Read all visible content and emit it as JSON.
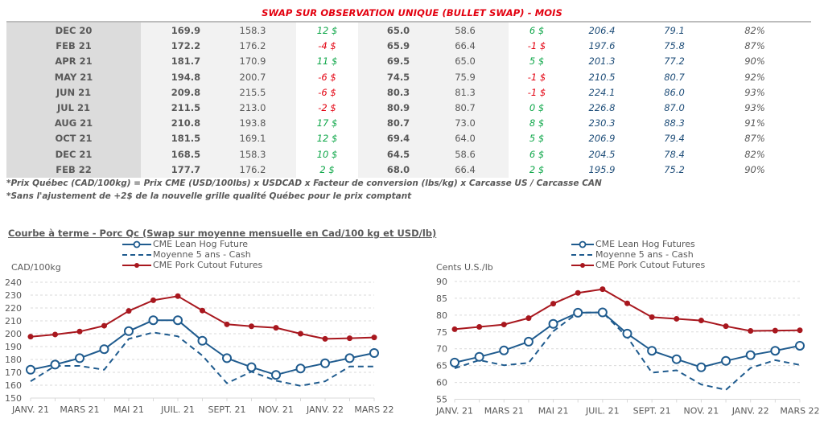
{
  "table": {
    "title": "SWAP SUR OBSERVATION UNIQUE (BULLET SWAP) - MOIS",
    "rows": [
      {
        "month": "DEC 20",
        "c1": "169.9",
        "c2": "158.3",
        "c3": "12 $",
        "c3_sign": "pos",
        "c4": "65.0",
        "c5": "58.6",
        "c6": "6 $",
        "c6_sign": "pos",
        "c7": "206.4",
        "c8": "79.1",
        "c9": "82%"
      },
      {
        "month": "FEB 21",
        "c1": "172.2",
        "c2": "176.2",
        "c3": "-4 $",
        "c3_sign": "neg",
        "c4": "65.9",
        "c5": "66.4",
        "c6": "-1 $",
        "c6_sign": "neg",
        "c7": "197.6",
        "c8": "75.8",
        "c9": "87%"
      },
      {
        "month": "APR 21",
        "c1": "181.7",
        "c2": "170.9",
        "c3": "11 $",
        "c3_sign": "pos",
        "c4": "69.5",
        "c5": "65.0",
        "c6": "5 $",
        "c6_sign": "pos",
        "c7": "201.3",
        "c8": "77.2",
        "c9": "90%"
      },
      {
        "month": "MAY 21",
        "c1": "194.8",
        "c2": "200.7",
        "c3": "-6 $",
        "c3_sign": "neg",
        "c4": "74.5",
        "c5": "75.9",
        "c6": "-1 $",
        "c6_sign": "neg",
        "c7": "210.5",
        "c8": "80.7",
        "c9": "92%"
      },
      {
        "month": "JUN 21",
        "c1": "209.8",
        "c2": "215.5",
        "c3": "-6 $",
        "c3_sign": "neg",
        "c4": "80.3",
        "c5": "81.3",
        "c6": "-1 $",
        "c6_sign": "neg",
        "c7": "224.1",
        "c8": "86.0",
        "c9": "93%"
      },
      {
        "month": "JUL 21",
        "c1": "211.5",
        "c2": "213.0",
        "c3": "-2 $",
        "c3_sign": "neg",
        "c4": "80.9",
        "c5": "80.7",
        "c6": "0 $",
        "c6_sign": "pos",
        "c7": "226.8",
        "c8": "87.0",
        "c9": "93%"
      },
      {
        "month": "AUG 21",
        "c1": "210.8",
        "c2": "193.8",
        "c3": "17 $",
        "c3_sign": "pos",
        "c4": "80.7",
        "c5": "73.0",
        "c6": "8 $",
        "c6_sign": "pos",
        "c7": "230.3",
        "c8": "88.3",
        "c9": "91%"
      },
      {
        "month": "OCT 21",
        "c1": "181.5",
        "c2": "169.1",
        "c3": "12 $",
        "c3_sign": "pos",
        "c4": "69.4",
        "c5": "64.0",
        "c6": "5 $",
        "c6_sign": "pos",
        "c7": "206.9",
        "c8": "79.4",
        "c9": "87%"
      },
      {
        "month": "DEC 21",
        "c1": "168.5",
        "c2": "158.3",
        "c3": "10 $",
        "c3_sign": "pos",
        "c4": "64.5",
        "c5": "58.6",
        "c6": "6 $",
        "c6_sign": "pos",
        "c7": "204.5",
        "c8": "78.4",
        "c9": "82%"
      },
      {
        "month": "FEB 22",
        "c1": "177.7",
        "c2": "176.2",
        "c3": "2 $",
        "c3_sign": "pos",
        "c4": "68.0",
        "c5": "66.4",
        "c6": "2 $",
        "c6_sign": "pos",
        "c7": "195.9",
        "c8": "75.2",
        "c9": "90%"
      }
    ],
    "notes": [
      "*Prix Québec (CAD/100kg) = Prix CME (USD/100lbs) x USDCAD x Facteur de conversion (lbs/kg) x Carcasse US / Carcasse CAN",
      "*Sans l'ajustement de +2$ de la nouvelle grille qualité Québec pour le prix comptant"
    ]
  },
  "colors": {
    "lean_hog": "#1f5b8e",
    "cash": "#1f5b8e",
    "cutout": "#a8171e",
    "positive": "#11a84b",
    "negative": "#e3000f",
    "grid": "#d9d9d9"
  },
  "chart_data": [
    {
      "type": "line",
      "title": "Courbe à terme - Porc Qc (Swap sur moyenne mensuelle en Cad/100 kg et USD/lb)",
      "ylabel": "CAD/100kg",
      "xlabel": "",
      "ylim": [
        150,
        240
      ],
      "yticks": [
        150,
        160,
        170,
        180,
        190,
        200,
        210,
        220,
        230,
        240
      ],
      "grid": true,
      "legend_position": "top-center",
      "x": [
        "JANV. 21",
        "FÉVR. 21",
        "MARS 21",
        "AVR. 21",
        "MAI 21",
        "JUIN 21",
        "JUIL. 21",
        "AOÛT 21",
        "SEPT. 21",
        "OCT. 21",
        "NOV. 21",
        "DÉC. 21",
        "JANV. 22",
        "FÉVR. 22",
        "MARS 22"
      ],
      "xtick_labels": [
        "JANV. 21",
        "MARS 21",
        "MAI 21",
        "JUIL. 21",
        "SEPT. 21",
        "NOV. 21",
        "JANV. 22",
        "MARS 22"
      ],
      "series": [
        {
          "name": "CME Lean Hog Future",
          "style": "solid-open-circle",
          "values": [
            172,
            176,
            181,
            188,
            202,
            210.5,
            210.5,
            194.5,
            181,
            174,
            168,
            173,
            177,
            181,
            185
          ]
        },
        {
          "name": "Moyenne 5 ans - Cash",
          "style": "dashed",
          "values": [
            163,
            175,
            175,
            172,
            196,
            201,
            198,
            183,
            161.5,
            170.5,
            163.5,
            159.5,
            163,
            174.5,
            174.5
          ]
        },
        {
          "name": "CME Pork Cutout Futures",
          "style": "solid-filled-dot",
          "values": [
            197.7,
            199.4,
            201.7,
            206.2,
            217.7,
            226,
            229.2,
            218,
            207.3,
            205.8,
            204.6,
            200,
            196,
            196.5,
            197.1
          ]
        }
      ]
    },
    {
      "type": "line",
      "title": "",
      "ylabel": "Cents U.S./lb",
      "xlabel": "",
      "ylim": [
        55,
        90
      ],
      "yticks": [
        55,
        60,
        65,
        70,
        75,
        80,
        85,
        90
      ],
      "grid": true,
      "legend_position": "top-center",
      "x": [
        "JANV. 21",
        "FÉVR. 21",
        "MARS 21",
        "AVR. 21",
        "MAI 21",
        "JUIN 21",
        "JUIL. 21",
        "AOÛT 21",
        "SEPT. 21",
        "OCT. 21",
        "NOV. 21",
        "DÉC. 21",
        "JANV. 22",
        "FÉVR. 22",
        "MARS 22"
      ],
      "xtick_labels": [
        "JANV. 21",
        "MARS 21",
        "MAI 21",
        "JUIL. 21",
        "SEPT. 21",
        "NOV. 21",
        "JANV. 22",
        "MARS 22"
      ],
      "series": [
        {
          "name": "CME Lean Hog Futures",
          "style": "solid-open-circle",
          "values": [
            65.9,
            67.6,
            69.5,
            72.1,
            77.4,
            80.7,
            80.8,
            74.5,
            69.4,
            66.9,
            64.5,
            66.4,
            68.1,
            69.4,
            70.9
          ]
        },
        {
          "name": "Moyenne 5 ans - Cash",
          "style": "dashed",
          "values": [
            64.2,
            66.6,
            65.1,
            65.8,
            75.2,
            80.7,
            80.8,
            73.5,
            62.9,
            63.6,
            59.4,
            57.8,
            64.3,
            66.6,
            65.2
          ]
        },
        {
          "name": "CME Pork Cutout Futures",
          "style": "solid-filled-dot",
          "values": [
            75.8,
            76.5,
            77.2,
            79.1,
            83.4,
            86.6,
            87.7,
            83.5,
            79.4,
            78.9,
            78.4,
            76.7,
            75.3,
            75.4,
            75.5
          ]
        }
      ]
    }
  ]
}
